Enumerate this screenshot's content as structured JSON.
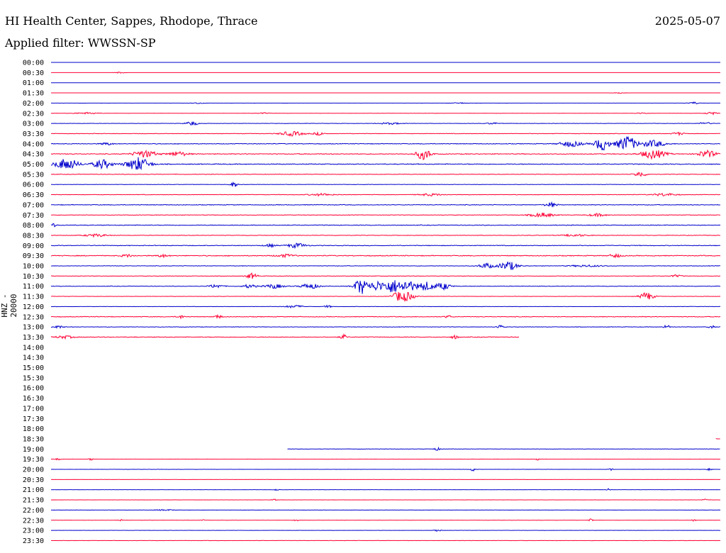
{
  "header": {
    "station": "HI Health Center, Sappes, Rhodope, Thrace",
    "date": "2025-05-07",
    "filter": "Applied filter: WWSSN-SP"
  },
  "channel_label": "HNZ - 20000",
  "colors": {
    "even_hour": "#0000cc",
    "half_hour": "#ff0033"
  },
  "chart_data": {
    "type": "line",
    "title": "HI Health Center, Sappes, Rhodope, Thrace",
    "subtitle": "Applied filter: WWSSN-SP",
    "ylabel": "HNZ - 20000",
    "y_tick_labels": [
      "00:00",
      "00:30",
      "01:00",
      "01:30",
      "02:00",
      "02:30",
      "03:00",
      "03:30",
      "04:00",
      "04:30",
      "05:00",
      "05:30",
      "06:00",
      "06:30",
      "07:00",
      "07:30",
      "08:00",
      "08:30",
      "09:00",
      "09:30",
      "10:00",
      "10:30",
      "11:00",
      "11:30",
      "12:00",
      "12:30",
      "13:00",
      "13:30",
      "14:00",
      "14:30",
      "15:00",
      "15:30",
      "16:00",
      "16:30",
      "17:00",
      "17:30",
      "18:00",
      "18:30",
      "19:00",
      "19:30",
      "20:00",
      "20:30",
      "21:00",
      "21:30",
      "22:00",
      "22:30",
      "23:00",
      "23:30"
    ],
    "x_range_minutes": [
      0,
      30
    ],
    "grid": false,
    "traces": [
      {
        "start": 0,
        "end": 30,
        "noise": 0.0,
        "events": []
      },
      {
        "start": 0,
        "end": 30,
        "noise": 0.0,
        "events": [
          [
            3.1,
            0.5,
            0.3
          ]
        ]
      },
      {
        "start": 0,
        "end": 30,
        "noise": 0.0,
        "events": []
      },
      {
        "start": 0,
        "end": 30,
        "noise": 0.0,
        "events": [
          [
            25.5,
            0.5,
            0.3
          ]
        ]
      },
      {
        "start": 0,
        "end": 30,
        "noise": 0.05,
        "events": [
          [
            6.6,
            0.5,
            0.3
          ],
          [
            18.3,
            0.5,
            0.3
          ],
          [
            28.8,
            0.5,
            0.5
          ]
        ]
      },
      {
        "start": 0,
        "end": 30,
        "noise": 0.1,
        "events": [
          [
            1.6,
            1.0,
            0.4
          ],
          [
            9.5,
            0.5,
            0.3
          ],
          [
            26.5,
            0.5,
            0.3
          ],
          [
            29.6,
            0.5,
            0.6
          ]
        ]
      },
      {
        "start": 0,
        "end": 30,
        "noise": 0.2,
        "events": [
          [
            6.3,
            0.5,
            1.0
          ],
          [
            15.2,
            1.0,
            0.4
          ],
          [
            19.8,
            0.5,
            0.4
          ],
          [
            29.3,
            0.5,
            0.6
          ]
        ]
      },
      {
        "start": 0,
        "end": 30,
        "noise": 0.3,
        "events": [
          [
            10.8,
            1.0,
            1.0
          ],
          [
            12.0,
            0.5,
            0.6
          ],
          [
            28.1,
            0.5,
            0.6
          ]
        ]
      },
      {
        "start": 0,
        "end": 30,
        "noise": 0.4,
        "events": [
          [
            2.5,
            0.5,
            0.6
          ],
          [
            23.3,
            1.0,
            1.2
          ],
          [
            24.7,
            0.6,
            3.0
          ],
          [
            25.8,
            0.8,
            3.5
          ],
          [
            27.0,
            1.0,
            1.5
          ]
        ]
      },
      {
        "start": 0,
        "end": 30,
        "noise": 0.5,
        "events": [
          [
            4.2,
            1.0,
            1.5
          ],
          [
            5.7,
            0.8,
            1.0
          ],
          [
            16.7,
            0.6,
            2.5
          ],
          [
            27.0,
            1.0,
            2.0
          ],
          [
            29.4,
            0.8,
            1.5
          ]
        ]
      },
      {
        "start": 0,
        "end": 30,
        "noise": 0.5,
        "events": [
          [
            0.7,
            1.0,
            2.5
          ],
          [
            2.3,
            0.8,
            2.0
          ],
          [
            3.9,
            1.0,
            3.0
          ]
        ]
      },
      {
        "start": 0,
        "end": 30,
        "noise": 0.3,
        "events": [
          [
            26.4,
            0.5,
            1.2
          ]
        ]
      },
      {
        "start": 0,
        "end": 30,
        "noise": 0.2,
        "events": [
          [
            8.2,
            0.3,
            1.2
          ]
        ]
      },
      {
        "start": 0,
        "end": 30,
        "noise": 0.3,
        "events": [
          [
            12.1,
            1.0,
            0.5
          ],
          [
            17.0,
            1.0,
            0.5
          ],
          [
            27.5,
            1.0,
            0.6
          ]
        ]
      },
      {
        "start": 0,
        "end": 30,
        "noise": 0.4,
        "events": [
          [
            22.4,
            0.5,
            1.0
          ]
        ]
      },
      {
        "start": 0,
        "end": 30,
        "noise": 0.3,
        "events": [
          [
            22.0,
            1.0,
            1.0
          ],
          [
            24.5,
            0.8,
            0.6
          ]
        ]
      },
      {
        "start": 0,
        "end": 30,
        "noise": 0.4,
        "events": [
          [
            0.1,
            0.2,
            0.8
          ]
        ]
      },
      {
        "start": 0,
        "end": 30,
        "noise": 0.3,
        "events": [
          [
            2.0,
            1.0,
            0.6
          ],
          [
            23.5,
            1.0,
            0.5
          ]
        ]
      },
      {
        "start": 0,
        "end": 30,
        "noise": 0.4,
        "events": [
          [
            9.8,
            0.5,
            0.6
          ],
          [
            11.0,
            0.8,
            1.0
          ]
        ]
      },
      {
        "start": 0,
        "end": 30,
        "noise": 0.5,
        "events": [
          [
            3.4,
            0.5,
            0.6
          ],
          [
            5.0,
            0.5,
            0.6
          ],
          [
            10.5,
            0.8,
            0.6
          ],
          [
            25.3,
            0.5,
            0.8
          ]
        ]
      },
      {
        "start": 0,
        "end": 30,
        "noise": 0.3,
        "events": [
          [
            19.5,
            0.6,
            1.2
          ],
          [
            20.5,
            0.8,
            2.0
          ],
          [
            24.0,
            1.5,
            0.4
          ]
        ]
      },
      {
        "start": 0,
        "end": 30,
        "noise": 0.3,
        "events": [
          [
            9.0,
            0.5,
            1.2
          ],
          [
            28.0,
            0.5,
            0.5
          ]
        ]
      },
      {
        "start": 0,
        "end": 30,
        "noise": 0.3,
        "events": [
          [
            7.4,
            0.6,
            0.8
          ],
          [
            8.9,
            0.6,
            0.8
          ],
          [
            10.0,
            0.8,
            1.0
          ],
          [
            11.6,
            0.8,
            1.2
          ],
          [
            13.9,
            0.6,
            3.5
          ],
          [
            14.6,
            0.6,
            2.0
          ],
          [
            15.3,
            0.8,
            3.0
          ],
          [
            16.0,
            0.6,
            2.5
          ],
          [
            16.8,
            0.8,
            2.0
          ],
          [
            17.6,
            0.6,
            1.5
          ]
        ]
      },
      {
        "start": 0,
        "end": 30,
        "noise": 0.2,
        "events": [
          [
            15.6,
            0.6,
            2.0
          ],
          [
            16.0,
            0.6,
            1.5
          ],
          [
            26.7,
            0.6,
            1.8
          ]
        ]
      },
      {
        "start": 0,
        "end": 30,
        "noise": 0.2,
        "events": [
          [
            10.9,
            0.8,
            0.6
          ],
          [
            12.4,
            0.3,
            0.6
          ]
        ]
      },
      {
        "start": 0,
        "end": 30,
        "noise": 0.4,
        "events": [
          [
            5.8,
            0.3,
            0.8
          ],
          [
            7.5,
            0.3,
            0.8
          ],
          [
            17.8,
            0.3,
            0.6
          ]
        ]
      },
      {
        "start": 0,
        "end": 30,
        "noise": 0.3,
        "events": [
          [
            0.3,
            0.5,
            0.6
          ],
          [
            20.1,
            0.3,
            0.8
          ],
          [
            27.6,
            0.3,
            0.8
          ],
          [
            29.6,
            0.3,
            0.6
          ]
        ]
      },
      {
        "start": 0,
        "end": 21,
        "noise": 0.4,
        "events": [
          [
            0.6,
            0.8,
            0.6
          ],
          [
            13.1,
            0.3,
            1.0
          ],
          [
            18.1,
            0.3,
            0.8
          ]
        ]
      },
      {
        "start": 0,
        "end": 0,
        "noise": 0.0,
        "events": []
      },
      {
        "start": 0,
        "end": 0,
        "noise": 0.0,
        "events": []
      },
      {
        "start": 0,
        "end": 0,
        "noise": 0.0,
        "events": []
      },
      {
        "start": 0,
        "end": 0,
        "noise": 0.0,
        "events": []
      },
      {
        "start": 0,
        "end": 0,
        "noise": 0.0,
        "events": []
      },
      {
        "start": 0,
        "end": 0,
        "noise": 0.0,
        "events": []
      },
      {
        "start": 0,
        "end": 0,
        "noise": 0.0,
        "events": []
      },
      {
        "start": 0,
        "end": 0,
        "noise": 0.0,
        "events": []
      },
      {
        "start": 0,
        "end": 0,
        "noise": 0.0,
        "events": []
      },
      {
        "start": 29.8,
        "end": 30,
        "noise": 0.0,
        "events": [
          [
            29.8,
            0.2,
            0.2
          ]
        ]
      },
      {
        "start": 10.6,
        "end": 30,
        "noise": 0.2,
        "events": [
          [
            17.3,
            0.3,
            0.6
          ]
        ]
      },
      {
        "start": 0,
        "end": 30,
        "noise": 0.1,
        "events": [
          [
            0.3,
            0.2,
            0.5
          ],
          [
            1.8,
            0.2,
            0.5
          ],
          [
            21.8,
            0.2,
            0.4
          ]
        ]
      },
      {
        "start": 0,
        "end": 30,
        "noise": 0.1,
        "events": [
          [
            18.9,
            0.2,
            0.8
          ],
          [
            25.1,
            0.2,
            0.5
          ],
          [
            29.5,
            0.2,
            0.5
          ]
        ]
      },
      {
        "start": 0,
        "end": 30,
        "noise": 0.1,
        "events": []
      },
      {
        "start": 0,
        "end": 30,
        "noise": 0.1,
        "events": [
          [
            10.1,
            0.2,
            0.5
          ],
          [
            25.0,
            0.2,
            0.5
          ]
        ]
      },
      {
        "start": 0,
        "end": 30,
        "noise": 0.1,
        "events": [
          [
            10.0,
            0.2,
            0.4
          ],
          [
            29.3,
            0.2,
            0.5
          ]
        ]
      },
      {
        "start": 0,
        "end": 30,
        "noise": 0.1,
        "events": [
          [
            5.1,
            0.8,
            0.3
          ]
        ]
      },
      {
        "start": 0,
        "end": 30,
        "noise": 0.1,
        "events": [
          [
            3.1,
            0.2,
            0.4
          ],
          [
            6.8,
            0.2,
            0.4
          ],
          [
            11.0,
            0.2,
            0.4
          ],
          [
            24.2,
            0.2,
            0.6
          ],
          [
            28.8,
            0.2,
            0.4
          ]
        ]
      },
      {
        "start": 0,
        "end": 30,
        "noise": 0.1,
        "events": [
          [
            17.3,
            0.3,
            0.6
          ]
        ]
      },
      {
        "start": 0,
        "end": 30,
        "noise": 0.2,
        "events": []
      }
    ]
  }
}
